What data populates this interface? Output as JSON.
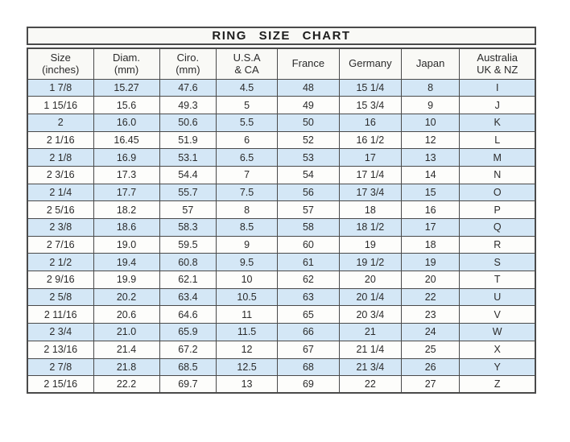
{
  "chart_data": {
    "type": "table",
    "title": "RING SIZE CHART",
    "columns": [
      [
        "Size",
        "(inches)"
      ],
      [
        "Diam.",
        "(mm)"
      ],
      [
        "Ciro.",
        "(mm)"
      ],
      [
        "U.S.A",
        "& CA"
      ],
      [
        "France"
      ],
      [
        "Germany"
      ],
      [
        "Japan"
      ],
      [
        "Australia",
        "UK & NZ"
      ]
    ],
    "rows": [
      [
        "1 7/8",
        "15.27",
        "47.6",
        "4.5",
        "48",
        "15 1/4",
        "8",
        "I"
      ],
      [
        "1 15/16",
        "15.6",
        "49.3",
        "5",
        "49",
        "15 3/4",
        "9",
        "J"
      ],
      [
        "2",
        "16.0",
        "50.6",
        "5.5",
        "50",
        "16",
        "10",
        "K"
      ],
      [
        "2 1/16",
        "16.45",
        "51.9",
        "6",
        "52",
        "16 1/2",
        "12",
        "L"
      ],
      [
        "2 1/8",
        "16.9",
        "53.1",
        "6.5",
        "53",
        "17",
        "13",
        "M"
      ],
      [
        "2 3/16",
        "17.3",
        "54.4",
        "7",
        "54",
        "17 1/4",
        "14",
        "N"
      ],
      [
        "2 1/4",
        "17.7",
        "55.7",
        "7.5",
        "56",
        "17 3/4",
        "15",
        "O"
      ],
      [
        "2 5/16",
        "18.2",
        "57",
        "8",
        "57",
        "18",
        "16",
        "P"
      ],
      [
        "2 3/8",
        "18.6",
        "58.3",
        "8.5",
        "58",
        "18 1/2",
        "17",
        "Q"
      ],
      [
        "2 7/16",
        "19.0",
        "59.5",
        "9",
        "60",
        "19",
        "18",
        "R"
      ],
      [
        "2 1/2",
        "19.4",
        "60.8",
        "9.5",
        "61",
        "19 1/2",
        "19",
        "S"
      ],
      [
        "2 9/16",
        "19.9",
        "62.1",
        "10",
        "62",
        "20",
        "20",
        "T"
      ],
      [
        "2 5/8",
        "20.2",
        "63.4",
        "10.5",
        "63",
        "20 1/4",
        "22",
        "U"
      ],
      [
        "2 11/16",
        "20.6",
        "64.6",
        "11",
        "65",
        "20 3/4",
        "23",
        "V"
      ],
      [
        "2 3/4",
        "21.0",
        "65.9",
        "11.5",
        "66",
        "21",
        "24",
        "W"
      ],
      [
        "2 13/16",
        "21.4",
        "67.2",
        "12",
        "67",
        "21 1/4",
        "25",
        "X"
      ],
      [
        "2 7/8",
        "21.8",
        "68.5",
        "12.5",
        "68",
        "21 3/4",
        "26",
        "Y"
      ],
      [
        "2 15/16",
        "22.2",
        "69.7",
        "13",
        "69",
        "22",
        "27",
        "Z"
      ]
    ],
    "layout": {
      "striped": true,
      "stripe_start_row": 1,
      "legend_position": "none",
      "grid": true
    },
    "colors": {
      "stripe_row_bg": "#d4e7f6",
      "header_bg": "#f9f9f6",
      "border": "#4a4a4a",
      "text": "#2b2b2b",
      "page_bg": "#ffffff"
    }
  }
}
